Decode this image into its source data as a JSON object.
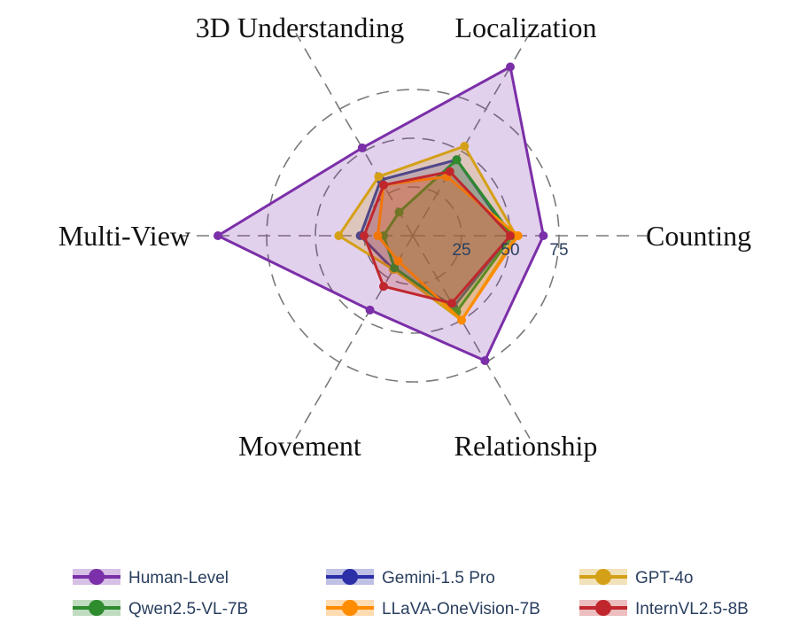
{
  "chart_data": {
    "type": "radar",
    "axes": [
      "Counting",
      "Localization",
      "3D Understanding",
      "Multi-View",
      "Movement",
      "Relationship"
    ],
    "radial_ticks": [
      25,
      50,
      75
    ],
    "rmax": 100,
    "grid": true,
    "legend_position": "bottom",
    "series": [
      {
        "name": "Human-Level",
        "color": "#7b2fa8",
        "fill_opacity": 0.22,
        "values": [
          67,
          100,
          52,
          100,
          44,
          74
        ]
      },
      {
        "name": "Gemini-1.5 Pro",
        "color": "#2b2fa8",
        "fill_opacity": 0.22,
        "values": [
          50,
          45,
          33,
          27,
          20,
          42
        ]
      },
      {
        "name": "GPT-4o",
        "color": "#d4a017",
        "fill_opacity": 0.22,
        "values": [
          53,
          53,
          35,
          38,
          20,
          50
        ]
      },
      {
        "name": "Qwen2.5-VL-7B",
        "color": "#2e8b2e",
        "fill_opacity": 0.22,
        "values": [
          51,
          45,
          14,
          15,
          19,
          45
        ]
      },
      {
        "name": "LLaVA-OneVision-7B",
        "color": "#ff8c00",
        "fill_opacity": 0.22,
        "values": [
          54,
          35,
          30,
          18,
          15,
          50
        ]
      },
      {
        "name": "InternVL2.5-8B",
        "color": "#c0272d",
        "fill_opacity": 0.22,
        "values": [
          50,
          38,
          30,
          25,
          30,
          40
        ]
      }
    ]
  }
}
